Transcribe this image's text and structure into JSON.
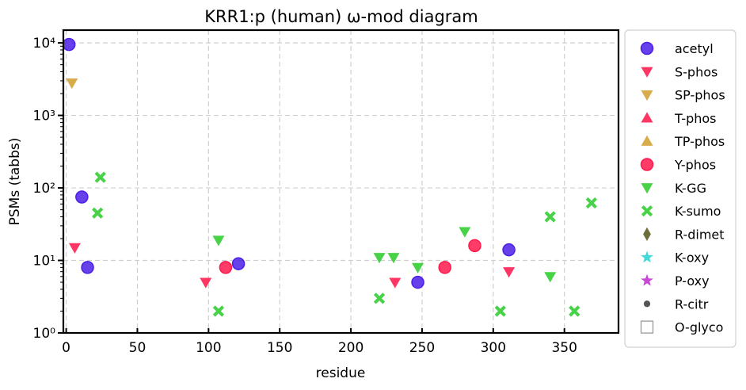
{
  "chart_data": {
    "type": "scatter",
    "title": "KRR1:p (human) ω-mod diagram",
    "xlabel": "residue",
    "ylabel": "PSMs (tabbs)",
    "x_scale": "linear",
    "y_scale": "log",
    "xlim": [
      -2,
      388
    ],
    "ylim": [
      1,
      15000
    ],
    "grid": true,
    "legend_position": "right",
    "x_ticks": [
      0,
      50,
      100,
      150,
      200,
      250,
      300,
      350
    ],
    "y_ticks": [
      {
        "value": 1,
        "label": "10⁰"
      },
      {
        "value": 10,
        "label": "10¹"
      },
      {
        "value": 100,
        "label": "10²"
      },
      {
        "value": 1000,
        "label": "10³"
      },
      {
        "value": 10000,
        "label": "10⁴"
      }
    ],
    "series": [
      {
        "name": "acetyl",
        "color": "#4b1fe6",
        "marker": "circle",
        "points": [
          [
            2,
            9500
          ],
          [
            11,
            75
          ],
          [
            15,
            8
          ],
          [
            121,
            9
          ],
          [
            247,
            5
          ],
          [
            311,
            14
          ]
        ]
      },
      {
        "name": "S-phos",
        "color": "#ff1a4d",
        "marker": "triangle-down",
        "points": [
          [
            6,
            15
          ],
          [
            98,
            5
          ],
          [
            231,
            5
          ],
          [
            311,
            7
          ]
        ]
      },
      {
        "name": "SP-phos",
        "color": "#d4a032",
        "marker": "triangle-down",
        "points": [
          [
            4,
            2800
          ]
        ]
      },
      {
        "name": "T-phos",
        "color": "#ff1a4d",
        "marker": "triangle-up",
        "points": []
      },
      {
        "name": "TP-phos",
        "color": "#d4a032",
        "marker": "triangle-up",
        "points": []
      },
      {
        "name": "Y-phos",
        "color": "#ff1a4d",
        "marker": "circle",
        "points": [
          [
            112,
            8
          ],
          [
            266,
            8
          ],
          [
            287,
            16
          ]
        ]
      },
      {
        "name": "K-GG",
        "color": "#2ecc2e",
        "marker": "triangle-down",
        "points": [
          [
            107,
            19
          ],
          [
            220,
            11
          ],
          [
            230,
            11
          ],
          [
            247,
            8
          ],
          [
            280,
            25
          ],
          [
            340,
            6
          ]
        ]
      },
      {
        "name": "K-sumo",
        "color": "#2ecc2e",
        "marker": "x",
        "points": [
          [
            24,
            140
          ],
          [
            22,
            45
          ],
          [
            107,
            2
          ],
          [
            220,
            3
          ],
          [
            305,
            2
          ],
          [
            340,
            40
          ],
          [
            357,
            2
          ],
          [
            369,
            62
          ]
        ]
      },
      {
        "name": "R-dimet",
        "color": "#5a5a20",
        "marker": "diamond",
        "points": []
      },
      {
        "name": "K-oxy",
        "color": "#2ad4d4",
        "marker": "star",
        "points": []
      },
      {
        "name": "P-oxy",
        "color": "#c030d0",
        "marker": "star",
        "points": []
      },
      {
        "name": "R-citr",
        "color": "#555555",
        "marker": "dot",
        "points": []
      },
      {
        "name": "O-glyco",
        "color": "#999999",
        "marker": "square-open",
        "points": []
      }
    ]
  }
}
